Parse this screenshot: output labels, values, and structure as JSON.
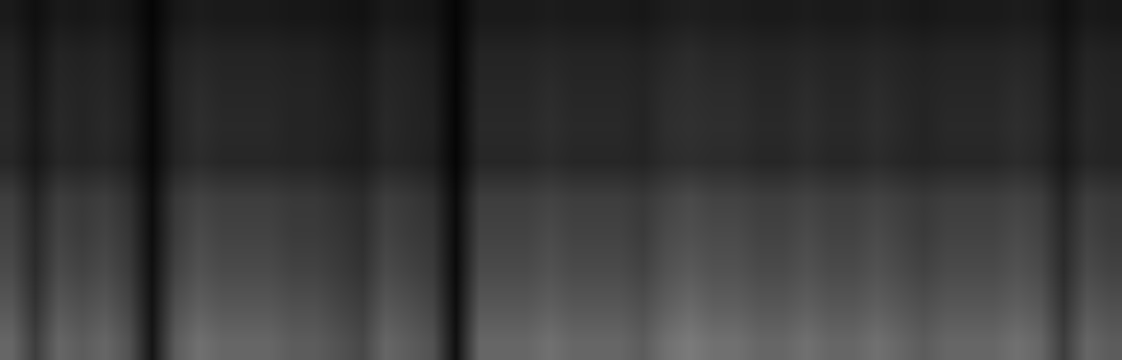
{
  "chart_data": {
    "type": "heatmap",
    "tick_labels": false,
    "zlim": [
      0,
      1
    ],
    "cells": [
      [
        0.1,
        0.06,
        0.1,
        0.09,
        0.1,
        0.08,
        0.02,
        0.09,
        0.11,
        0.1,
        0.1,
        0.1,
        0.09,
        0.09,
        0.08,
        0.07,
        0.1,
        0.09,
        0.08,
        0.02,
        0.1,
        0.1,
        0.1,
        0.11,
        0.1,
        0.1,
        0.1,
        0.09,
        0.11,
        0.12,
        0.11,
        0.11,
        0.1,
        0.1,
        0.11,
        0.1,
        0.1,
        0.11,
        0.1,
        0.09,
        0.1,
        0.1,
        0.1,
        0.11,
        0.1,
        0.06,
        0.1,
        0.09
      ],
      [
        0.14,
        0.08,
        0.14,
        0.13,
        0.14,
        0.11,
        0.03,
        0.13,
        0.15,
        0.14,
        0.14,
        0.14,
        0.13,
        0.13,
        0.11,
        0.1,
        0.14,
        0.13,
        0.11,
        0.02,
        0.14,
        0.14,
        0.14,
        0.15,
        0.14,
        0.14,
        0.14,
        0.13,
        0.15,
        0.17,
        0.15,
        0.15,
        0.14,
        0.14,
        0.15,
        0.14,
        0.14,
        0.15,
        0.14,
        0.13,
        0.14,
        0.14,
        0.14,
        0.15,
        0.14,
        0.08,
        0.14,
        0.13
      ],
      [
        0.15,
        0.09,
        0.15,
        0.14,
        0.15,
        0.12,
        0.03,
        0.14,
        0.17,
        0.15,
        0.15,
        0.15,
        0.14,
        0.14,
        0.12,
        0.11,
        0.15,
        0.14,
        0.12,
        0.02,
        0.15,
        0.15,
        0.15,
        0.17,
        0.15,
        0.15,
        0.15,
        0.14,
        0.17,
        0.18,
        0.17,
        0.17,
        0.15,
        0.15,
        0.17,
        0.15,
        0.15,
        0.17,
        0.15,
        0.14,
        0.15,
        0.15,
        0.15,
        0.17,
        0.15,
        0.09,
        0.15,
        0.14
      ],
      [
        0.16,
        0.1,
        0.16,
        0.14,
        0.16,
        0.13,
        0.03,
        0.14,
        0.18,
        0.16,
        0.16,
        0.16,
        0.14,
        0.14,
        0.13,
        0.11,
        0.16,
        0.14,
        0.13,
        0.02,
        0.16,
        0.16,
        0.16,
        0.18,
        0.16,
        0.16,
        0.16,
        0.14,
        0.18,
        0.19,
        0.18,
        0.18,
        0.16,
        0.16,
        0.18,
        0.16,
        0.16,
        0.18,
        0.16,
        0.14,
        0.16,
        0.16,
        0.16,
        0.18,
        0.16,
        0.1,
        0.16,
        0.14
      ],
      [
        0.15,
        0.09,
        0.15,
        0.14,
        0.15,
        0.12,
        0.03,
        0.14,
        0.17,
        0.15,
        0.15,
        0.15,
        0.14,
        0.14,
        0.12,
        0.11,
        0.15,
        0.14,
        0.12,
        0.02,
        0.15,
        0.15,
        0.15,
        0.17,
        0.15,
        0.15,
        0.15,
        0.14,
        0.17,
        0.18,
        0.17,
        0.17,
        0.15,
        0.15,
        0.17,
        0.15,
        0.15,
        0.17,
        0.15,
        0.14,
        0.15,
        0.15,
        0.15,
        0.17,
        0.15,
        0.09,
        0.15,
        0.14
      ],
      [
        0.24,
        0.14,
        0.24,
        0.22,
        0.24,
        0.19,
        0.05,
        0.22,
        0.26,
        0.24,
        0.24,
        0.24,
        0.22,
        0.22,
        0.19,
        0.17,
        0.24,
        0.22,
        0.19,
        0.04,
        0.24,
        0.24,
        0.24,
        0.26,
        0.24,
        0.24,
        0.24,
        0.22,
        0.26,
        0.29,
        0.26,
        0.26,
        0.24,
        0.24,
        0.26,
        0.24,
        0.24,
        0.26,
        0.24,
        0.22,
        0.24,
        0.24,
        0.24,
        0.26,
        0.24,
        0.14,
        0.24,
        0.22
      ],
      [
        0.26,
        0.16,
        0.26,
        0.23,
        0.26,
        0.21,
        0.05,
        0.23,
        0.29,
        0.26,
        0.26,
        0.26,
        0.23,
        0.23,
        0.21,
        0.18,
        0.26,
        0.23,
        0.21,
        0.04,
        0.26,
        0.26,
        0.26,
        0.29,
        0.26,
        0.26,
        0.26,
        0.23,
        0.29,
        0.31,
        0.29,
        0.29,
        0.26,
        0.26,
        0.29,
        0.26,
        0.26,
        0.29,
        0.26,
        0.23,
        0.26,
        0.26,
        0.26,
        0.29,
        0.26,
        0.16,
        0.26,
        0.23
      ],
      [
        0.29,
        0.17,
        0.29,
        0.26,
        0.29,
        0.23,
        0.06,
        0.26,
        0.32,
        0.29,
        0.29,
        0.29,
        0.26,
        0.26,
        0.23,
        0.2,
        0.29,
        0.26,
        0.23,
        0.04,
        0.29,
        0.29,
        0.29,
        0.32,
        0.29,
        0.29,
        0.29,
        0.26,
        0.32,
        0.35,
        0.32,
        0.32,
        0.29,
        0.29,
        0.32,
        0.29,
        0.29,
        0.32,
        0.29,
        0.26,
        0.29,
        0.29,
        0.29,
        0.32,
        0.29,
        0.17,
        0.29,
        0.26
      ],
      [
        0.34,
        0.2,
        0.34,
        0.31,
        0.34,
        0.27,
        0.07,
        0.31,
        0.37,
        0.34,
        0.34,
        0.34,
        0.31,
        0.31,
        0.27,
        0.24,
        0.34,
        0.31,
        0.27,
        0.05,
        0.34,
        0.34,
        0.34,
        0.37,
        0.34,
        0.34,
        0.34,
        0.31,
        0.37,
        0.41,
        0.37,
        0.37,
        0.34,
        0.34,
        0.37,
        0.34,
        0.34,
        0.37,
        0.34,
        0.31,
        0.34,
        0.34,
        0.34,
        0.37,
        0.34,
        0.2,
        0.34,
        0.31
      ],
      [
        0.4,
        0.24,
        0.4,
        0.36,
        0.4,
        0.32,
        0.08,
        0.36,
        0.44,
        0.4,
        0.4,
        0.4,
        0.36,
        0.36,
        0.32,
        0.28,
        0.4,
        0.36,
        0.32,
        0.06,
        0.4,
        0.4,
        0.4,
        0.44,
        0.4,
        0.4,
        0.4,
        0.36,
        0.44,
        0.48,
        0.44,
        0.44,
        0.4,
        0.4,
        0.44,
        0.4,
        0.4,
        0.44,
        0.4,
        0.36,
        0.4,
        0.4,
        0.4,
        0.44,
        0.4,
        0.24,
        0.4,
        0.36
      ]
    ]
  }
}
